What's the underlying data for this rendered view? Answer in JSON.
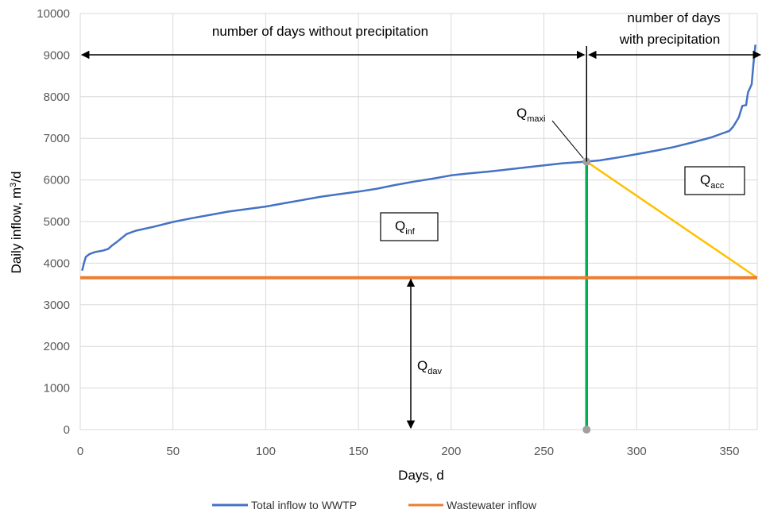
{
  "chart_data": {
    "type": "line",
    "xlabel": "Days, d",
    "ylabel_main": "Daily inflow, m",
    "ylabel_sup": "3",
    "ylabel_tail": "/d",
    "xlim": [
      0,
      365
    ],
    "ylim": [
      0,
      10000
    ],
    "x_ticks": [
      "0",
      "50",
      "100",
      "150",
      "200",
      "250",
      "300",
      "350"
    ],
    "y_ticks": [
      "0",
      "1000",
      "2000",
      "3000",
      "4000",
      "5000",
      "6000",
      "7000",
      "8000",
      "9000",
      "10000"
    ],
    "grid": true,
    "series": [
      {
        "name": "Total inflow to WWTP",
        "color": "#4472C4",
        "points": [
          [
            1,
            3820
          ],
          [
            2,
            4000
          ],
          [
            3,
            4150
          ],
          [
            5,
            4220
          ],
          [
            8,
            4270
          ],
          [
            12,
            4300
          ],
          [
            15,
            4340
          ],
          [
            17,
            4420
          ],
          [
            20,
            4520
          ],
          [
            25,
            4700
          ],
          [
            30,
            4780
          ],
          [
            40,
            4880
          ],
          [
            50,
            4990
          ],
          [
            60,
            5080
          ],
          [
            70,
            5160
          ],
          [
            80,
            5240
          ],
          [
            90,
            5300
          ],
          [
            100,
            5360
          ],
          [
            110,
            5440
          ],
          [
            120,
            5520
          ],
          [
            130,
            5600
          ],
          [
            140,
            5660
          ],
          [
            150,
            5720
          ],
          [
            160,
            5790
          ],
          [
            170,
            5880
          ],
          [
            180,
            5960
          ],
          [
            190,
            6030
          ],
          [
            200,
            6110
          ],
          [
            210,
            6160
          ],
          [
            220,
            6200
          ],
          [
            230,
            6250
          ],
          [
            240,
            6300
          ],
          [
            250,
            6350
          ],
          [
            260,
            6400
          ],
          [
            273,
            6440
          ],
          [
            280,
            6470
          ],
          [
            290,
            6540
          ],
          [
            300,
            6620
          ],
          [
            310,
            6700
          ],
          [
            320,
            6790
          ],
          [
            330,
            6900
          ],
          [
            340,
            7020
          ],
          [
            345,
            7100
          ],
          [
            350,
            7180
          ],
          [
            352,
            7280
          ],
          [
            355,
            7500
          ],
          [
            357,
            7780
          ],
          [
            359,
            7800
          ],
          [
            360,
            8100
          ],
          [
            362,
            8300
          ],
          [
            363,
            8800
          ],
          [
            364,
            9250
          ]
        ]
      },
      {
        "name": "Wastewater inflow",
        "color": "#ED7D31",
        "points": [
          [
            0,
            3650
          ],
          [
            365,
            3650
          ]
        ]
      }
    ],
    "reference_lines": [
      {
        "kind": "vertical",
        "x": 273,
        "y_from": 0,
        "y_to": 6440,
        "color": "#00B050"
      },
      {
        "kind": "sloped",
        "from": [
          273,
          6440
        ],
        "to": [
          365,
          3650
        ],
        "color": "#FFC000"
      }
    ],
    "annotations": {
      "without_precip": "number of days without precipitation",
      "with_precip_1": "number of days",
      "with_precip_2": "with precipitation",
      "q_maxi": {
        "main": "Q",
        "sub": "maxi"
      },
      "q_acc": {
        "main": "Q",
        "sub": "acc"
      },
      "q_inf": {
        "main": "Q",
        "sub": "inf"
      },
      "q_dav": {
        "main": "Q",
        "sub": "dav"
      }
    },
    "legend_position": "bottom"
  }
}
